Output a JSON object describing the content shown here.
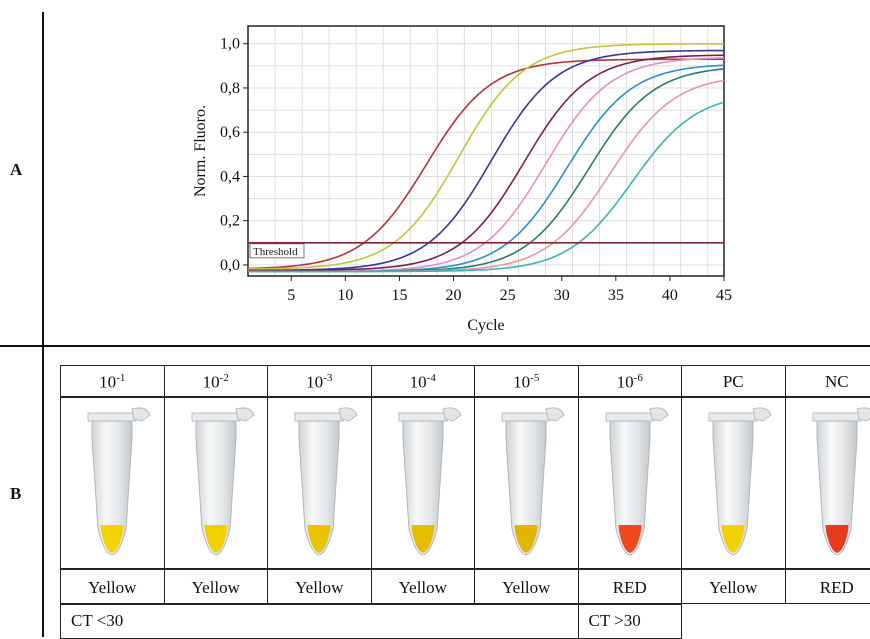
{
  "panels": {
    "a_label": "A",
    "b_label": "B"
  },
  "chart_data": {
    "type": "line",
    "xlabel": "Cycle",
    "ylabel": "Norm. Fluoro.",
    "xlim": [
      1,
      45
    ],
    "ylim": [
      -0.05,
      1.08
    ],
    "xticks": [
      5,
      10,
      15,
      20,
      25,
      30,
      35,
      40,
      45
    ],
    "yticks": [
      0.0,
      0.2,
      0.4,
      0.6,
      0.8,
      1.0
    ],
    "ytick_labels": [
      "0,0",
      "0,2",
      "0,4",
      "0,6",
      "0,8",
      "1,0"
    ],
    "grid": true,
    "threshold": {
      "label": "Threshold",
      "value": 0.1,
      "color": "#8b2332"
    },
    "series": [
      {
        "color": "#b0343b",
        "midpoint": 17.5,
        "top": 0.93,
        "slope": 1.15,
        "base": -0.02
      },
      {
        "color": "#c7c33a",
        "midpoint": 20.5,
        "top": 1.0,
        "slope": 1.15,
        "base": -0.02
      },
      {
        "color": "#3a3596",
        "midpoint": 23.5,
        "top": 0.97,
        "slope": 1.15,
        "base": -0.025
      },
      {
        "color": "#7a1f55",
        "midpoint": 26.5,
        "top": 0.95,
        "slope": 1.15,
        "base": -0.025
      },
      {
        "color": "#e08fc8",
        "midpoint": 28.5,
        "top": 0.94,
        "slope": 1.15,
        "base": -0.03
      },
      {
        "color": "#2b8fc8",
        "midpoint": 30.5,
        "top": 0.91,
        "slope": 1.15,
        "base": -0.03
      },
      {
        "color": "#2a7a6e",
        "midpoint": 32.5,
        "top": 0.9,
        "slope": 1.15,
        "base": -0.03
      },
      {
        "color": "#e49a9a",
        "midpoint": 34.5,
        "top": 0.86,
        "slope": 1.15,
        "base": -0.03
      },
      {
        "color": "#3bb5b5",
        "midpoint": 36.5,
        "top": 0.78,
        "slope": 1.15,
        "base": -0.03
      }
    ]
  },
  "table": {
    "columns": [
      {
        "base": "10",
        "exp": "-1",
        "result": "Yellow",
        "tube_color": "#f2d400"
      },
      {
        "base": "10",
        "exp": "-2",
        "result": "Yellow",
        "tube_color": "#f0d000"
      },
      {
        "base": "10",
        "exp": "-3",
        "result": "Yellow",
        "tube_color": "#e9c200"
      },
      {
        "base": "10",
        "exp": "-4",
        "result": "Yellow",
        "tube_color": "#e6bc00"
      },
      {
        "base": "10",
        "exp": "-5",
        "result": "Yellow",
        "tube_color": "#e2b500"
      },
      {
        "base": "10",
        "exp": "-6",
        "result": "RED",
        "tube_color": "#ec4a1a"
      },
      {
        "base": "PC",
        "exp": "",
        "result": "Yellow",
        "tube_color": "#f1d200"
      },
      {
        "base": "NC",
        "exp": "",
        "result": "RED",
        "tube_color": "#e63a1a"
      }
    ],
    "ct_low": "CT <30",
    "ct_high": "CT >30"
  }
}
